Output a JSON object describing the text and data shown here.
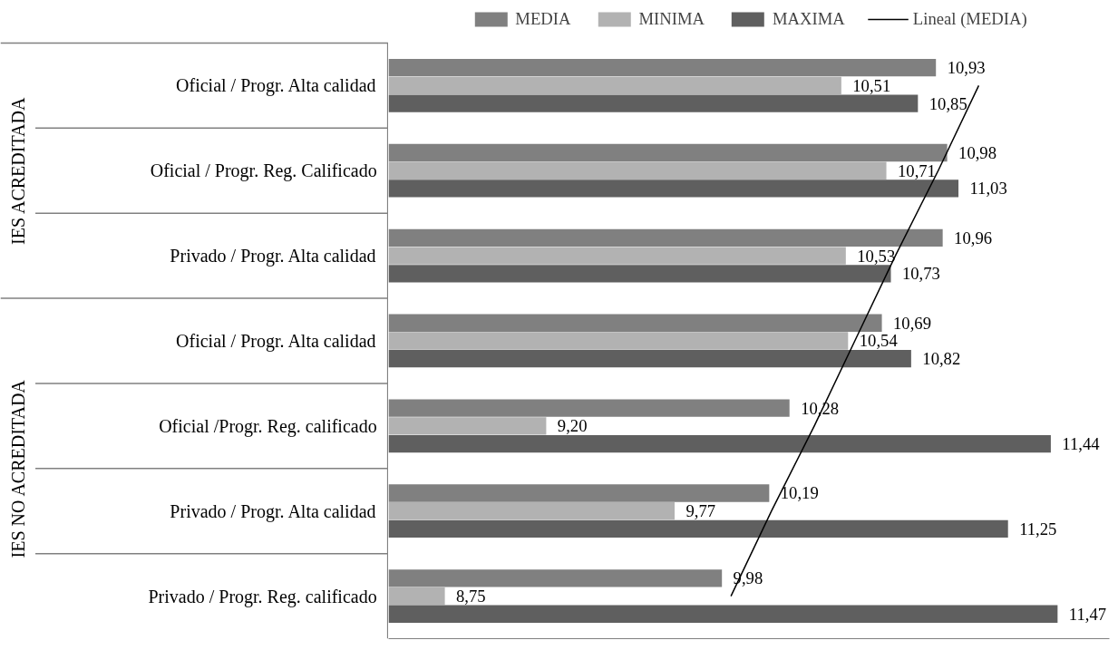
{
  "chart_data": {
    "type": "bar",
    "orientation": "horizontal",
    "categories": [
      "Oficial / Progr. Alta calidad",
      "Oficial / Progr. Reg. Calificado",
      "Privado / Progr. Alta calidad",
      "Oficial / Progr. Alta calidad",
      "Oficial /Progr. Reg. calificado",
      "Privado / Progr. Alta calidad",
      "Privado / Progr. Reg. calificado"
    ],
    "series": [
      {
        "name": "MEDIA",
        "color": "#808080",
        "values": [
          10.93,
          10.98,
          10.96,
          10.69,
          10.28,
          10.19,
          9.98
        ],
        "value_labels": [
          "10,93",
          "10,98",
          "10,96",
          "10,69",
          "10,28",
          "10,19",
          "9,98"
        ]
      },
      {
        "name": "MINIMA",
        "color": "#b2b2b2",
        "values": [
          10.51,
          10.71,
          10.53,
          10.54,
          9.2,
          9.77,
          8.75
        ],
        "value_labels": [
          "10,51",
          "10,71",
          "10,53",
          "10,54",
          "9,20",
          "9,77",
          "8,75"
        ]
      },
      {
        "name": "MAXIMA",
        "color": "#5f5f5f",
        "values": [
          10.85,
          11.03,
          10.73,
          10.82,
          11.44,
          11.25,
          11.47
        ],
        "value_labels": [
          "10,85",
          "11,03",
          "10,73",
          "10,82",
          "11,44",
          "11,25",
          "11,47"
        ]
      },
      {
        "name": "Lineal (MEDIA)",
        "type": "line",
        "color": "#000000",
        "values": [
          11.12,
          10.94,
          10.75,
          10.57,
          10.39,
          10.2,
          10.02
        ]
      }
    ],
    "annotations": [
      "IES ACREDITADA",
      "IES NO ACREDITADA"
    ],
    "xlim": [
      8.5,
      11.7
    ],
    "legend": "top",
    "grid": false,
    "tick_labels": false
  }
}
